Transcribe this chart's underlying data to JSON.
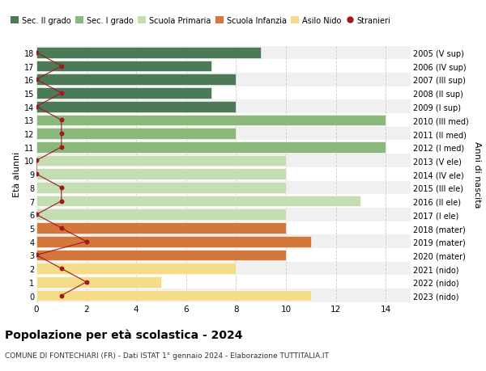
{
  "ages": [
    18,
    17,
    16,
    15,
    14,
    13,
    12,
    11,
    10,
    9,
    8,
    7,
    6,
    5,
    4,
    3,
    2,
    1,
    0
  ],
  "right_labels": [
    "2005 (V sup)",
    "2006 (IV sup)",
    "2007 (III sup)",
    "2008 (II sup)",
    "2009 (I sup)",
    "2010 (III med)",
    "2011 (II med)",
    "2012 (I med)",
    "2013 (V ele)",
    "2014 (IV ele)",
    "2015 (III ele)",
    "2016 (II ele)",
    "2017 (I ele)",
    "2018 (mater)",
    "2019 (mater)",
    "2020 (mater)",
    "2021 (nido)",
    "2022 (nido)",
    "2023 (nido)"
  ],
  "bar_values": [
    9,
    7,
    8,
    7,
    8,
    14,
    8,
    14,
    10,
    10,
    10,
    13,
    10,
    10,
    11,
    10,
    8,
    5,
    11
  ],
  "bar_colors": [
    "#4d7a56",
    "#4d7a56",
    "#4d7a56",
    "#4d7a56",
    "#4d7a56",
    "#8ab87a",
    "#8ab87a",
    "#8ab87a",
    "#c5ddb2",
    "#c5ddb2",
    "#c5ddb2",
    "#c5ddb2",
    "#c5ddb2",
    "#d4773a",
    "#d4773a",
    "#d4773a",
    "#f5dc8a",
    "#f5dc8a",
    "#f5dc8a"
  ],
  "row_bg_colors": [
    "#e8e8e8",
    "#ffffff",
    "#e8e8e8",
    "#ffffff",
    "#e8e8e8",
    "#e8e8e8",
    "#ffffff",
    "#e8e8e8",
    "#ffffff",
    "#e8e8e8",
    "#ffffff",
    "#e8e8e8",
    "#ffffff",
    "#e8e8e8",
    "#ffffff",
    "#e8e8e8",
    "#ffffff",
    "#e8e8e8",
    "#ffffff"
  ],
  "stranieri_values": [
    0,
    1,
    0,
    1,
    0,
    1,
    1,
    1,
    0,
    0,
    1,
    1,
    0,
    1,
    2,
    0,
    1,
    2,
    1
  ],
  "legend_labels": [
    "Sec. II grado",
    "Sec. I grado",
    "Scuola Primaria",
    "Scuola Infanzia",
    "Asilo Nido",
    "Stranieri"
  ],
  "legend_colors": [
    "#4d7a56",
    "#8ab87a",
    "#c5ddb2",
    "#d4773a",
    "#f5dc8a",
    "#a01820"
  ],
  "title": "Popolazione per età scolastica - 2024",
  "subtitle": "COMUNE DI FONTECHIARI (FR) - Dati ISTAT 1° gennaio 2024 - Elaborazione TUTTITALIA.IT",
  "ylabel_left": "Età alunni",
  "ylabel_right": "Anni di nascita",
  "xlim": [
    0,
    15
  ],
  "xticks": [
    0,
    2,
    4,
    6,
    8,
    10,
    12,
    14
  ],
  "bg_color": "#ffffff",
  "grid_color": "#cccccc",
  "bar_height": 0.82
}
